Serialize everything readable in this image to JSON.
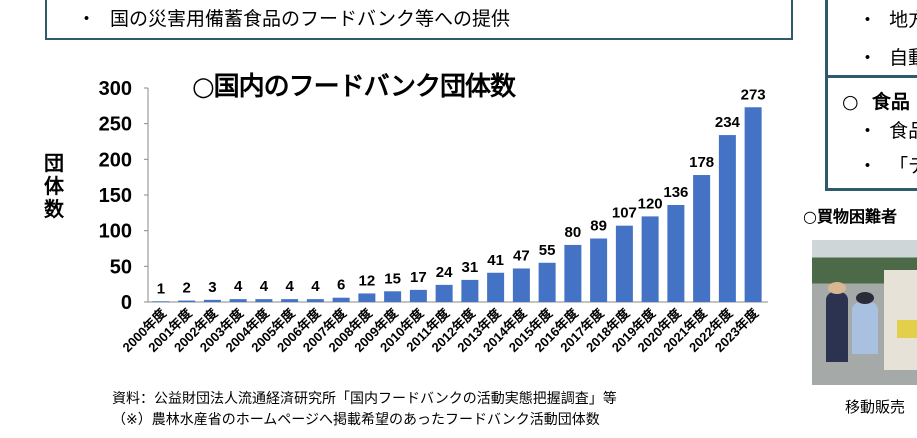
{
  "top_box": {
    "bullet": "・",
    "text": "国の災害用備蓄食品のフードバンク等への提供"
  },
  "right_box": {
    "items": [
      {
        "bullet": "・",
        "text": "地方"
      },
      {
        "bullet": "・",
        "text": "自動"
      },
      {
        "bullet": "○",
        "text": "食品"
      },
      {
        "bullet": "・",
        "text": "食品"
      },
      {
        "bullet": "・",
        "text": "「デ"
      }
    ]
  },
  "right_caption": "○買物困難者",
  "photo_caption": "移動販売",
  "chart_data": {
    "type": "bar",
    "title": "○国内のフードバンク団体数",
    "ylabel": "団体数",
    "xlabel": "",
    "ylim": [
      0,
      300
    ],
    "yticks": [
      0,
      50,
      100,
      150,
      200,
      250,
      300
    ],
    "grid": false,
    "bar_color": "#4472c4",
    "categories": [
      "2000年度",
      "2001年度",
      "2002年度",
      "2003年度",
      "2004年度",
      "2005年度",
      "2006年度",
      "2007年度",
      "2008年度",
      "2009年度",
      "2010年度",
      "2011年度",
      "2012年度",
      "2013年度",
      "2014年度",
      "2015年度",
      "2016年度",
      "2017年度",
      "2018年度",
      "2019年度",
      "2020年度",
      "2021年度",
      "2022年度",
      "2023年度"
    ],
    "values": [
      1,
      2,
      3,
      4,
      4,
      4,
      4,
      6,
      12,
      15,
      17,
      24,
      31,
      41,
      47,
      55,
      80,
      89,
      107,
      120,
      136,
      178,
      234,
      273
    ]
  },
  "notes": [
    "資料：公益財団法人流通経済研究所「国内フードバンクの活動実態把握調査」等",
    "（※）農林水産省のホームページへ掲載希望のあったフードバンク活動団体数"
  ]
}
